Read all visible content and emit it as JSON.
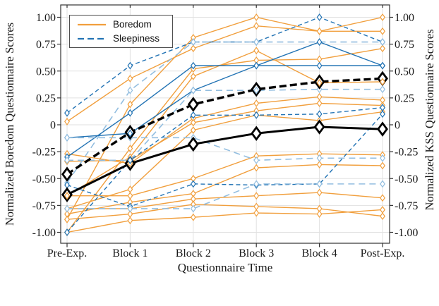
{
  "chart_data": {
    "type": "line",
    "title": "",
    "xlabel": "Questionnaire Time",
    "ylabel_left": "Normalized Boredom Questionnaire Scores",
    "ylabel_right": "Normalized KSS Questionnaire Scores",
    "categories": [
      "Pre-Exp.",
      "Block 1",
      "Block 2",
      "Block 3",
      "Block 4",
      "Post-Exp."
    ],
    "ytick_labels": [
      "1.00",
      "0.75",
      "0.50",
      "0.25",
      "0",
      "-0.25",
      "-0.50",
      "-0.75",
      "-1.00"
    ],
    "ytick_values": [
      1.0,
      0.75,
      0.5,
      0.25,
      0,
      -0.25,
      -0.5,
      -0.75,
      -1.0
    ],
    "ylim": [
      -1.1,
      1.11
    ],
    "grid": true,
    "legend": {
      "position": "top-left",
      "entries": [
        {
          "label": "Boredom",
          "line": "solid",
          "color_key": "boredom"
        },
        {
          "label": "Sleepiness",
          "line": "dashed",
          "color_key": "sleepiness"
        }
      ]
    },
    "colors": {
      "boredom": "#F19F3D",
      "sleepiness": "#2273B4",
      "sleepiness_light": "#93BEE0",
      "mean": "#000000",
      "grid": "#E1E1E1",
      "axis": "#333333"
    },
    "individual_series": [
      {
        "measure": "boredom",
        "line": "solid",
        "shade": "normal",
        "values": [
          0.03,
          0.43,
          0.71,
          0.92,
          0.87,
          1.0
        ]
      },
      {
        "measure": "boredom",
        "line": "solid",
        "shade": "normal",
        "values": [
          -0.88,
          0.19,
          0.81,
          1.0,
          0.87,
          0.87
        ]
      },
      {
        "measure": "boredom",
        "line": "solid",
        "shade": "normal",
        "values": [
          -1.0,
          -0.22,
          0.52,
          0.6,
          0.61,
          0.71
        ]
      },
      {
        "measure": "boredom",
        "line": "solid",
        "shade": "normal",
        "values": [
          -0.66,
          -0.3,
          0.45,
          0.69,
          0.39,
          0.4
        ]
      },
      {
        "measure": "boredom",
        "line": "solid",
        "shade": "normal",
        "values": [
          -0.27,
          -0.36,
          0.06,
          0.2,
          0.26,
          0.23
        ]
      },
      {
        "measure": "boredom",
        "line": "solid",
        "shade": "normal",
        "values": [
          -0.34,
          -0.33,
          0.02,
          0.13,
          0.2,
          0.18
        ]
      },
      {
        "measure": "boredom",
        "line": "solid",
        "shade": "normal",
        "values": [
          -0.78,
          -0.6,
          -0.05,
          0.09,
          0.04,
          0.12
        ]
      },
      {
        "measure": "boredom",
        "line": "solid",
        "shade": "normal",
        "values": [
          -0.66,
          -0.66,
          -0.5,
          -0.29,
          -0.27,
          -0.28
        ]
      },
      {
        "measure": "boredom",
        "line": "solid",
        "shade": "normal",
        "values": [
          -0.83,
          -0.72,
          -0.64,
          -0.4,
          -0.37,
          -0.38
        ]
      },
      {
        "measure": "boredom",
        "line": "solid",
        "shade": "normal",
        "values": [
          -0.78,
          -0.78,
          -0.69,
          -0.66,
          -0.63,
          -0.68
        ]
      },
      {
        "measure": "boredom",
        "line": "solid",
        "shade": "normal",
        "values": [
          -0.88,
          -0.83,
          -0.74,
          -0.76,
          -0.78,
          -0.85
        ]
      },
      {
        "measure": "boredom",
        "line": "solid",
        "shade": "normal",
        "values": [
          -1.0,
          -0.89,
          -0.86,
          -0.82,
          -0.83,
          -0.79
        ]
      },
      {
        "measure": "sleepiness",
        "line": "dashed",
        "shade": "normal",
        "values": [
          0.11,
          0.55,
          0.77,
          0.77,
          1.0,
          0.77
        ]
      },
      {
        "measure": "sleepiness",
        "line": "dashed",
        "shade": "light",
        "values": [
          -0.54,
          0.32,
          0.77,
          0.77,
          0.77,
          0.77
        ]
      },
      {
        "measure": "sleepiness",
        "line": "solid",
        "shade": "normal",
        "values": [
          -0.3,
          0.11,
          0.55,
          0.55,
          0.55,
          0.55
        ]
      },
      {
        "measure": "sleepiness",
        "line": "solid",
        "shade": "normal",
        "values": [
          -0.12,
          -0.08,
          0.32,
          0.55,
          0.77,
          0.55
        ]
      },
      {
        "measure": "sleepiness",
        "line": "dashed",
        "shade": "light",
        "values": [
          -0.33,
          -0.33,
          0.32,
          0.32,
          0.33,
          0.33
        ]
      },
      {
        "measure": "sleepiness",
        "line": "dashed",
        "shade": "normal",
        "values": [
          -1.0,
          -0.33,
          0.09,
          0.09,
          0.1,
          0.16
        ]
      },
      {
        "measure": "sleepiness",
        "line": "dashed",
        "shade": "light",
        "values": [
          -0.12,
          -0.12,
          -0.12,
          -0.33,
          -0.31,
          -0.31
        ]
      },
      {
        "measure": "sleepiness",
        "line": "dashed",
        "shade": "normal",
        "values": [
          -0.56,
          -0.76,
          -0.55,
          -0.56,
          -0.55,
          0.1
        ]
      },
      {
        "measure": "sleepiness",
        "line": "dashed",
        "shade": "light",
        "values": [
          -0.78,
          -0.78,
          -0.78,
          -0.55,
          -0.55,
          -0.55
        ]
      }
    ],
    "mean_series": [
      {
        "name": "Boredom mean",
        "measure": "boredom",
        "line": "solid",
        "values": [
          -0.65,
          -0.36,
          -0.18,
          -0.08,
          -0.02,
          -0.04
        ]
      },
      {
        "name": "Sleepiness mean",
        "measure": "sleepiness",
        "line": "dashed",
        "values": [
          -0.46,
          -0.07,
          0.19,
          0.33,
          0.4,
          0.43
        ]
      }
    ]
  }
}
